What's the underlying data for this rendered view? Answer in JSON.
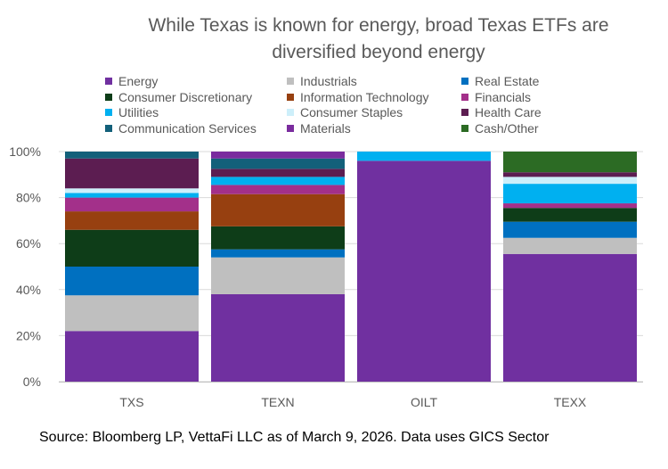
{
  "chart_data": {
    "type": "bar",
    "stacked": true,
    "normalized": true,
    "title_lines": [
      "While Texas is known for energy, broad Texas ETFs are",
      "diversified beyond energy"
    ],
    "source": "Source: Bloomberg LP, VettaFi LLC as of March 9, 2026. Data uses GICS Sector",
    "categories": [
      "TXS",
      "TEXN",
      "OILT",
      "TEXX"
    ],
    "y_ticks": [
      "0%",
      "20%",
      "40%",
      "60%",
      "80%",
      "100%"
    ],
    "ylim": [
      0,
      100
    ],
    "grid": true,
    "legend_position": "top",
    "series": [
      {
        "name": "Energy",
        "color": "#7030A0",
        "values": [
          22,
          38,
          96,
          55.5
        ]
      },
      {
        "name": "Industrials",
        "color": "#BFBFBF",
        "values": [
          15.5,
          16,
          0,
          7
        ]
      },
      {
        "name": "Real Estate",
        "color": "#0070C0",
        "values": [
          12.5,
          3.5,
          0,
          7
        ]
      },
      {
        "name": "Consumer Discretionary",
        "color": "#0E3D18",
        "values": [
          16,
          10,
          0,
          6
        ]
      },
      {
        "name": "Information Technology",
        "color": "#974010",
        "values": [
          8,
          14,
          0,
          0
        ]
      },
      {
        "name": "Financials",
        "color": "#A3308A",
        "values": [
          6,
          4,
          0,
          2
        ]
      },
      {
        "name": "Utilities",
        "color": "#00B0F0",
        "values": [
          2,
          3.5,
          4,
          8.5
        ]
      },
      {
        "name": "Consumer Staples",
        "color": "#CDEFFA",
        "values": [
          2,
          0,
          0,
          3
        ]
      },
      {
        "name": "Health Care",
        "color": "#5C1D51",
        "values": [
          13,
          3.5,
          0,
          2
        ]
      },
      {
        "name": "Communication Services",
        "color": "#13607A",
        "values": [
          3,
          4.5,
          0,
          0
        ]
      },
      {
        "name": "Materials",
        "color": "#7A2C9E",
        "values": [
          0,
          3,
          0,
          0
        ]
      },
      {
        "name": "Cash/Other",
        "color": "#2C6B24",
        "values": [
          0,
          0,
          0,
          9
        ]
      }
    ]
  }
}
